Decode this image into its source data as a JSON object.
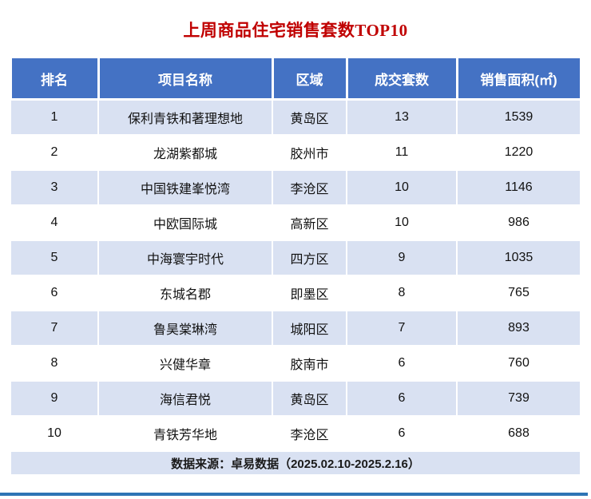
{
  "title": "上周商品住宅销售套数TOP10",
  "chart_data": {
    "type": "table",
    "title": "上周商品住宅销售套数TOP10",
    "columns": [
      "排名",
      "项目名称",
      "区域",
      "成交套数",
      "销售面积(㎡)"
    ],
    "rows": [
      [
        "1",
        "保利青铁和著理想地",
        "黄岛区",
        "13",
        "1539"
      ],
      [
        "2",
        "龙湖紫都城",
        "胶州市",
        "11",
        "1220"
      ],
      [
        "3",
        "中国铁建峯悦湾",
        "李沧区",
        "10",
        "1146"
      ],
      [
        "4",
        "中欧国际城",
        "高新区",
        "10",
        "986"
      ],
      [
        "5",
        "中海寰宇时代",
        "四方区",
        "9",
        "1035"
      ],
      [
        "6",
        "东城名郡",
        "即墨区",
        "8",
        "765"
      ],
      [
        "7",
        "鲁昊棠琳湾",
        "城阳区",
        "7",
        "893"
      ],
      [
        "8",
        "兴健华章",
        "胶南市",
        "6",
        "760"
      ],
      [
        "9",
        "海信君悦",
        "黄岛区",
        "6",
        "739"
      ],
      [
        "10",
        "青铁芳华地",
        "李沧区",
        "6",
        "688"
      ]
    ],
    "source_note": "数据来源：卓易数据（2025.02.10-2025.2.16）"
  },
  "colors": {
    "header_bg": "#4472C4",
    "alt_row_bg": "#D9E1F2",
    "title_color": "#C00000",
    "bottom_bar": "#2E74B5"
  }
}
